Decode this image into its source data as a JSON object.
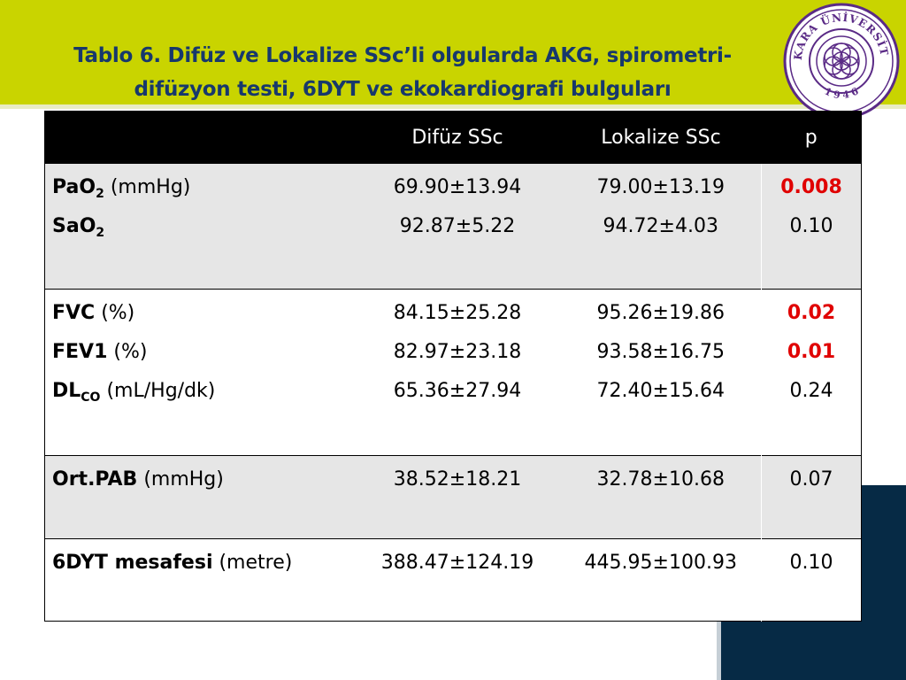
{
  "title": {
    "line1": "Tablo 6. Difüz ve Lokalize  SSc’li olgularda AKG, spirometri-",
    "line2": "difüzyon testi, 6DYT ve ekokardiografi bulguları"
  },
  "logo": {
    "arc_text": "ANKARA ÜNİVERSİTESİ",
    "year": "1 9 4 6"
  },
  "table": {
    "headers": [
      "",
      "Difüz SSc",
      "Lokalize SSc",
      "p"
    ],
    "groups": [
      {
        "rows": [
          {
            "name": "PaO",
            "sub": "2",
            "unit": " (mmHg)",
            "difuz": "69.90±13.94",
            "lokalize": "79.00±13.19",
            "p": "0.008",
            "significant": true
          },
          {
            "name": "SaO",
            "sub": "2",
            "unit": "",
            "difuz": "92.87±5.22",
            "lokalize": "94.72±4.03",
            "p": "0.10",
            "significant": false
          }
        ]
      },
      {
        "rows": [
          {
            "name": "FVC",
            "sub": "",
            "unit": " (%)",
            "difuz": "84.15±25.28",
            "lokalize": "95.26±19.86",
            "p": "0.02",
            "significant": true
          },
          {
            "name": "FEV1",
            "sub": "",
            "unit": " (%)",
            "difuz": "82.97±23.18",
            "lokalize": "93.58±16.75",
            "p": "0.01",
            "significant": true
          },
          {
            "name": "DL",
            "sub": "CO",
            "unit": " (mL/Hg/dk)",
            "difuz": "65.36±27.94",
            "lokalize": "72.40±15.64",
            "p": "0.24",
            "significant": false
          }
        ]
      },
      {
        "rows": [
          {
            "name": "Ort.PAB",
            "sub": "",
            "unit": " (mmHg)",
            "difuz": "38.52±18.21",
            "lokalize": "32.78±10.68",
            "p": "0.07",
            "significant": false
          }
        ]
      },
      {
        "rows": [
          {
            "name": "6DYT mesafesi",
            "sub": "",
            "unit": " (metre)",
            "difuz": "388.47±124.19",
            "lokalize": "445.95±100.93",
            "p": "0.10",
            "significant": false
          }
        ]
      }
    ]
  },
  "colors": {
    "header_band": "#c9d400",
    "title_text": "#17386c",
    "table_header_bg": "#000000",
    "row_shade": "#e6e6e6",
    "significant_p": "#e00000",
    "navy_block": "#062a45"
  }
}
